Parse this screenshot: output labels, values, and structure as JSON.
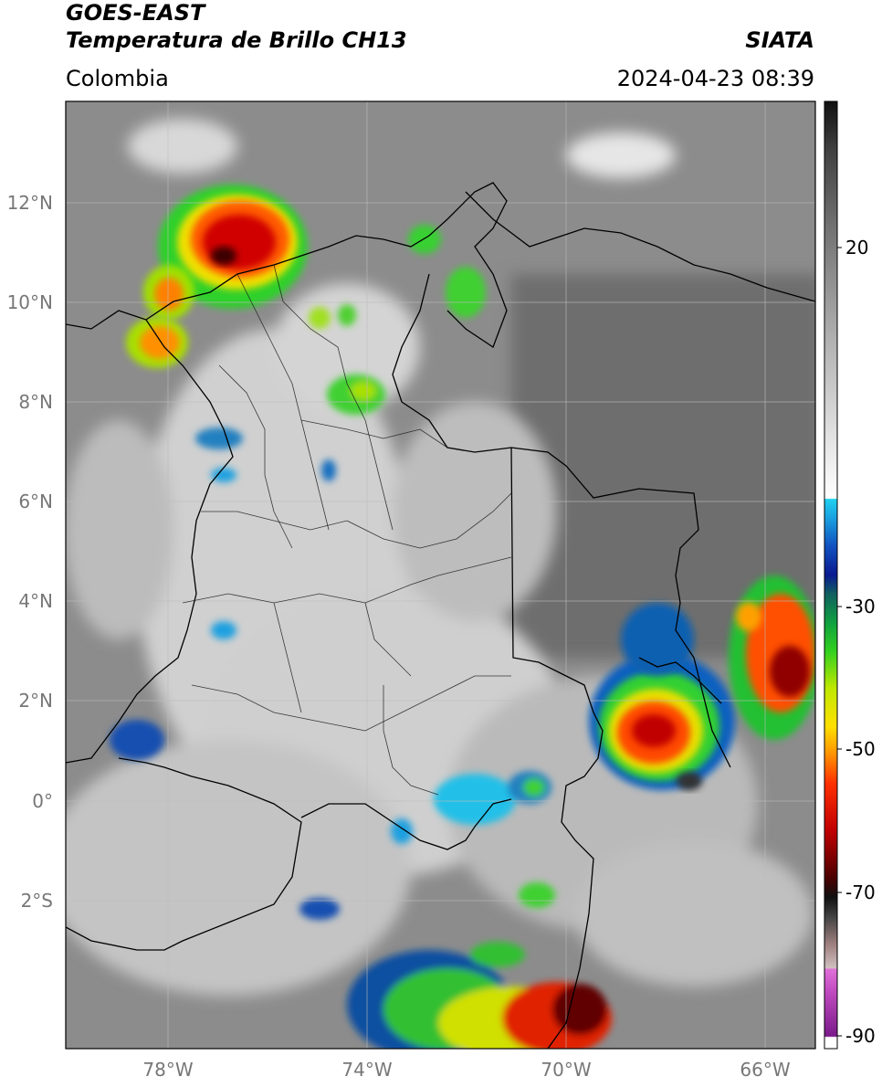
{
  "header": {
    "satellite": "GOES-EAST",
    "product": "Temperatura de Brillo CH13",
    "organization": "SIATA",
    "region": "Colombia",
    "datetime": "2024-04-23 08:39"
  },
  "map": {
    "lat_labels": [
      "12°N",
      "10°N",
      "8°N",
      "6°N",
      "4°N",
      "2°N",
      "0°",
      "2°S"
    ],
    "lon_labels": [
      "78°W",
      "74°W",
      "70°W",
      "66°W"
    ],
    "colors": {
      "background_gray": "#8a8a8a",
      "land_gray": "#c8c8c8",
      "border": "#000000",
      "grid": "#bfbfbf"
    }
  },
  "colorbar": {
    "tick_labels": [
      "20",
      "-30",
      "-50",
      "-70",
      "-90"
    ],
    "range": [
      -92,
      35
    ]
  }
}
